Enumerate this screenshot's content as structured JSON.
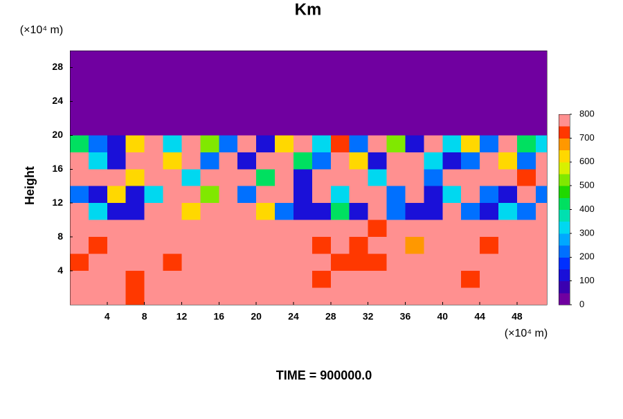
{
  "chart_data": {
    "type": "contour",
    "title": "Km",
    "ylabel": "Height",
    "x_unit": "(×10⁴ m)",
    "y_unit": "(×10⁴ m)",
    "footer": "TIME = 900000.0",
    "xlim": [
      0,
      51.2
    ],
    "ylim": [
      0,
      30
    ],
    "xticks": [
      4,
      8,
      12,
      16,
      20,
      24,
      28,
      32,
      36,
      40,
      44,
      48
    ],
    "yticks": [
      4,
      8,
      12,
      16,
      20,
      24,
      28
    ],
    "levels": [
      0,
      50,
      100,
      150,
      200,
      250,
      300,
      350,
      400,
      450,
      500,
      550,
      600,
      650,
      700,
      750,
      800
    ],
    "colors": [
      "#7000a0",
      "#3a00b0",
      "#1a10d8",
      "#0030ff",
      "#0070ff",
      "#00a8ff",
      "#00d8f0",
      "#00e0b0",
      "#00e060",
      "#20d800",
      "#80e800",
      "#d8f000",
      "#ffd800",
      "#ff9800",
      "#ff3800",
      "#ff9090"
    ],
    "zticks": [
      0,
      100,
      200,
      300,
      400,
      500,
      600,
      700,
      800
    ],
    "x": [
      1,
      3,
      5,
      7,
      9,
      11,
      13,
      15,
      17,
      19,
      21,
      23,
      25,
      27,
      29,
      31,
      33,
      35,
      37,
      39,
      41,
      43,
      45,
      47,
      49,
      51
    ],
    "y": [
      29,
      27,
      25,
      23,
      21,
      19,
      17,
      15,
      13,
      11,
      9,
      7,
      5,
      3,
      1
    ],
    "z": [
      [
        0,
        0,
        0,
        0,
        0,
        0,
        0,
        0,
        0,
        0,
        0,
        0,
        0,
        0,
        0,
        0,
        0,
        0,
        0,
        0,
        0,
        0,
        0,
        0,
        0,
        0
      ],
      [
        0,
        0,
        0,
        0,
        0,
        0,
        0,
        0,
        0,
        0,
        0,
        0,
        0,
        0,
        0,
        0,
        0,
        0,
        0,
        0,
        0,
        0,
        0,
        0,
        0,
        0
      ],
      [
        0,
        0,
        0,
        0,
        0,
        0,
        0,
        0,
        0,
        0,
        0,
        0,
        0,
        0,
        0,
        0,
        0,
        0,
        0,
        0,
        0,
        0,
        0,
        0,
        0,
        0
      ],
      [
        0,
        0,
        0,
        0,
        0,
        0,
        0,
        0,
        0,
        0,
        0,
        0,
        0,
        0,
        0,
        0,
        0,
        0,
        0,
        0,
        0,
        0,
        0,
        0,
        0,
        0
      ],
      [
        0,
        0,
        0,
        0,
        0,
        0,
        0,
        0,
        0,
        0,
        0,
        0,
        0,
        0,
        0,
        0,
        0,
        0,
        0,
        0,
        0,
        0,
        0,
        0,
        0,
        0
      ],
      [
        400,
        200,
        100,
        600,
        800,
        300,
        800,
        500,
        200,
        800,
        100,
        600,
        800,
        300,
        700,
        200,
        800,
        500,
        100,
        800,
        300,
        600,
        200,
        800,
        400,
        300
      ],
      [
        800,
        300,
        100,
        800,
        800,
        600,
        800,
        200,
        800,
        100,
        800,
        800,
        400,
        200,
        800,
        600,
        100,
        800,
        800,
        300,
        100,
        200,
        800,
        600,
        200,
        800
      ],
      [
        800,
        800,
        800,
        600,
        800,
        800,
        300,
        800,
        800,
        800,
        400,
        800,
        100,
        800,
        800,
        800,
        300,
        800,
        800,
        200,
        800,
        800,
        800,
        800,
        700,
        800
      ],
      [
        200,
        100,
        600,
        100,
        300,
        800,
        800,
        500,
        800,
        200,
        800,
        800,
        100,
        800,
        300,
        800,
        800,
        200,
        800,
        100,
        300,
        800,
        200,
        100,
        800,
        200
      ],
      [
        800,
        300,
        100,
        100,
        800,
        800,
        600,
        800,
        800,
        800,
        600,
        200,
        100,
        100,
        400,
        100,
        800,
        200,
        100,
        100,
        800,
        200,
        100,
        300,
        200,
        800
      ],
      [
        800,
        800,
        800,
        800,
        800,
        800,
        800,
        800,
        800,
        800,
        800,
        800,
        800,
        800,
        800,
        800,
        700,
        800,
        800,
        800,
        800,
        800,
        800,
        800,
        800,
        800
      ],
      [
        800,
        700,
        800,
        800,
        800,
        800,
        800,
        800,
        800,
        800,
        800,
        800,
        800,
        700,
        800,
        700,
        800,
        800,
        650,
        800,
        800,
        800,
        700,
        800,
        800,
        800
      ],
      [
        700,
        800,
        800,
        800,
        800,
        700,
        800,
        800,
        800,
        800,
        800,
        800,
        800,
        800,
        700,
        700,
        700,
        800,
        800,
        800,
        800,
        800,
        800,
        800,
        800,
        800
      ],
      [
        800,
        800,
        800,
        700,
        800,
        800,
        800,
        800,
        800,
        800,
        800,
        800,
        800,
        700,
        800,
        800,
        800,
        800,
        800,
        800,
        800,
        700,
        800,
        800,
        800,
        800
      ],
      [
        800,
        800,
        800,
        700,
        800,
        800,
        800,
        800,
        800,
        800,
        800,
        800,
        800,
        800,
        800,
        800,
        800,
        800,
        800,
        800,
        800,
        800,
        800,
        800,
        800,
        800
      ]
    ]
  }
}
